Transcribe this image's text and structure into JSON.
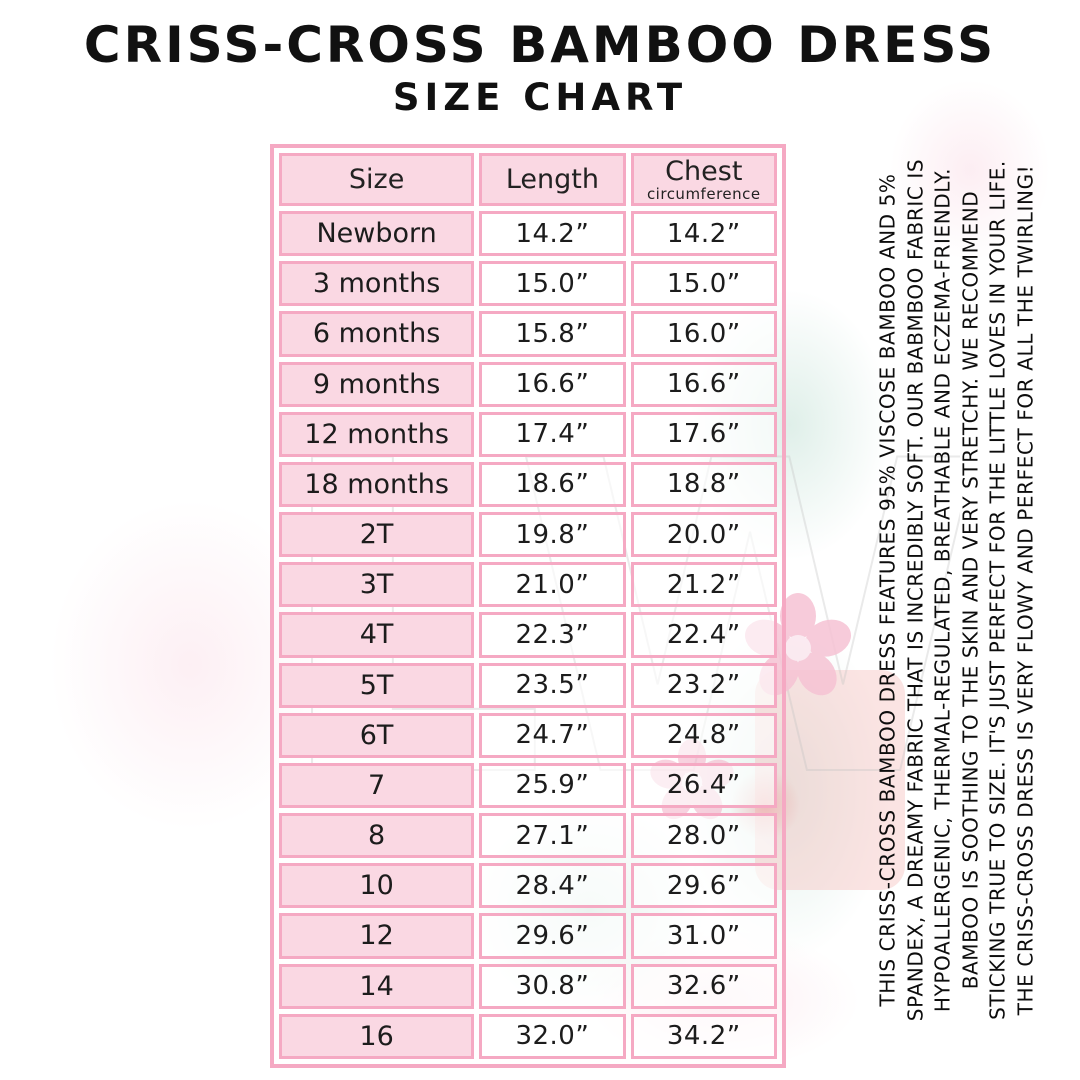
{
  "page": {
    "title": "CRISS-CROSS BAMBOO DRESS",
    "subtitle": "SIZE CHART"
  },
  "table": {
    "headers": {
      "size": "Size",
      "length": "Length",
      "chest": "Chest",
      "chest_sub": "circumference"
    },
    "rows": [
      {
        "size": "Newborn",
        "length": "14.2”",
        "chest": "14.2”"
      },
      {
        "size": "3 months",
        "length": "15.0”",
        "chest": "15.0”"
      },
      {
        "size": "6 months",
        "length": "15.8”",
        "chest": "16.0”"
      },
      {
        "size": "9 months",
        "length": "16.6”",
        "chest": "16.6”"
      },
      {
        "size": "12 months",
        "length": "17.4”",
        "chest": "17.6”"
      },
      {
        "size": "18 months",
        "length": "18.6”",
        "chest": "18.8”"
      },
      {
        "size": "2T",
        "length": "19.8”",
        "chest": "20.0”"
      },
      {
        "size": "3T",
        "length": "21.0”",
        "chest": "21.2”"
      },
      {
        "size": "4T",
        "length": "22.3”",
        "chest": "22.4”"
      },
      {
        "size": "5T",
        "length": "23.5”",
        "chest": "23.2”"
      },
      {
        "size": "6T",
        "length": "24.7”",
        "chest": "24.8”"
      },
      {
        "size": "7",
        "length": "25.9”",
        "chest": "26.4”"
      },
      {
        "size": "8",
        "length": "27.1”",
        "chest": "28.0”"
      },
      {
        "size": "10",
        "length": "28.4”",
        "chest": "29.6”"
      },
      {
        "size": "12",
        "length": "29.6”",
        "chest": "31.0”"
      },
      {
        "size": "14",
        "length": "30.8”",
        "chest": "32.6”"
      },
      {
        "size": "16",
        "length": "32.0”",
        "chest": "34.2”"
      }
    ]
  },
  "sidebar_text": {
    "lines": [
      "THIS CRISS-CROSS BAMBOO DRESS FEATURES 95% VISCOSE BAMBOO AND 5%",
      "SPANDEX, A DREAMY FABRIC THAT IS INCREDIBLY SOFT. OUR BABMBOO FABRIC IS",
      "HYPOALLERGENIC, THERMAL-REGULATED, BREATHABLE AND ECZEMA-FRIENDLY.",
      "BAMBOO IS SOOTHING TO THE SKIN AND VERY STRETCHY. WE RECOMMEND",
      "STICKING TRUE TO SIZE. IT'S JUST PERFECT FOR THE LITTLE LOVES IN YOUR LIFE.",
      "THE CRISS-CROSS DRESS IS VERY FLOWY AND PERFECT FOR ALL THE TWIRLING!"
    ]
  },
  "watermark": {
    "text": "LW"
  },
  "colors": {
    "border_pink": "#f5a9c3",
    "cell_pink": "#fad8e3",
    "flower_pink": "#f6c3d4",
    "flower_center": "#fbe7ef"
  }
}
